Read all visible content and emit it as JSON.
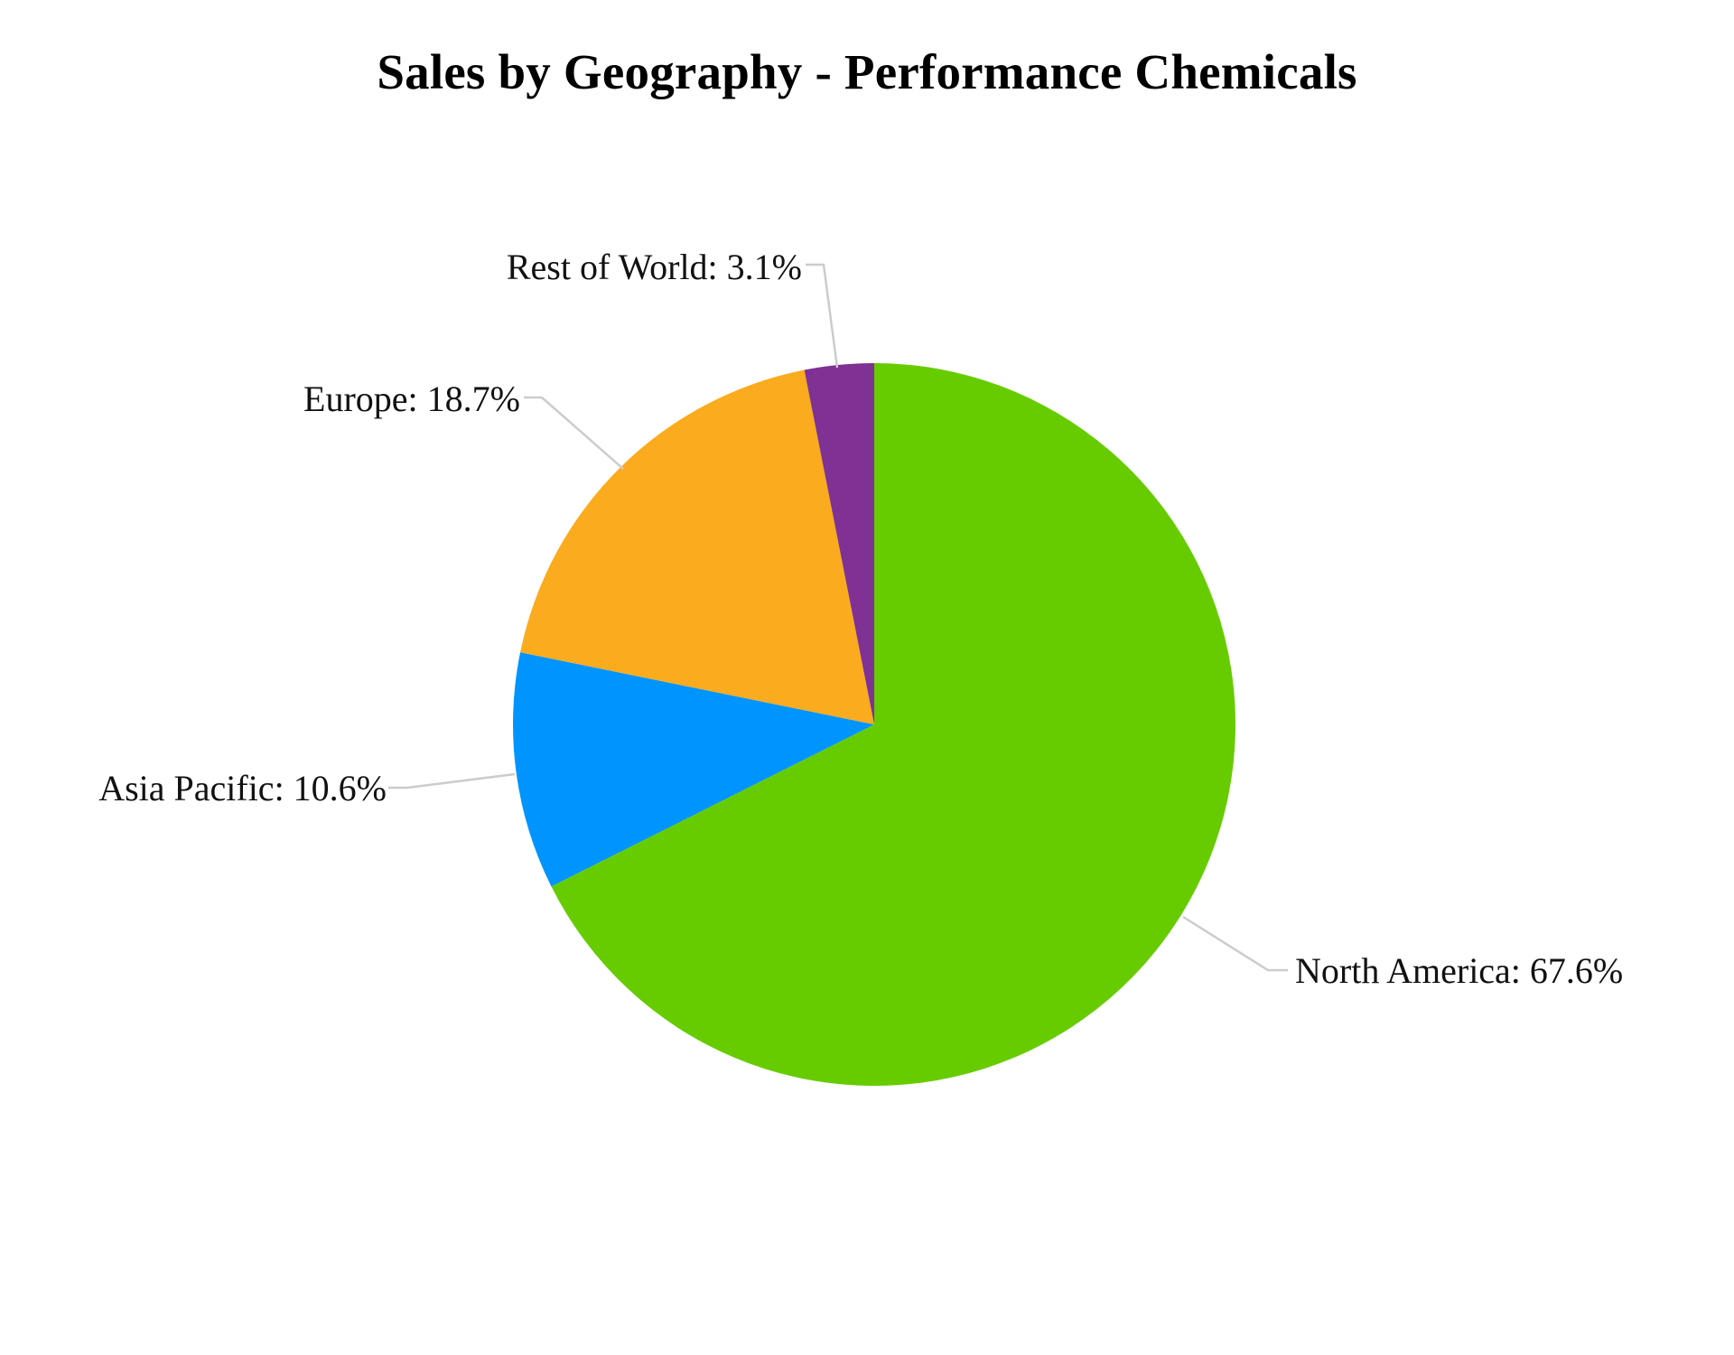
{
  "chart_data": {
    "type": "pie",
    "title": "Sales by Geography - Performance Chemicals",
    "start_angle_deg": 0,
    "direction": "clockwise",
    "slices": [
      {
        "name": "North America",
        "value": 67.6,
        "label": "North America: 67.6%",
        "color": "#66cc00"
      },
      {
        "name": "Asia Pacific",
        "value": 10.6,
        "label": "Asia Pacific: 10.6%",
        "color": "#0094ff"
      },
      {
        "name": "Europe",
        "value": 18.7,
        "label": "Europe: 18.7%",
        "color": "#faab1e"
      },
      {
        "name": "Rest of World",
        "value": 3.1,
        "label": "Rest of World: 3.1%",
        "color": "#7f3194"
      }
    ],
    "legend": "none"
  }
}
